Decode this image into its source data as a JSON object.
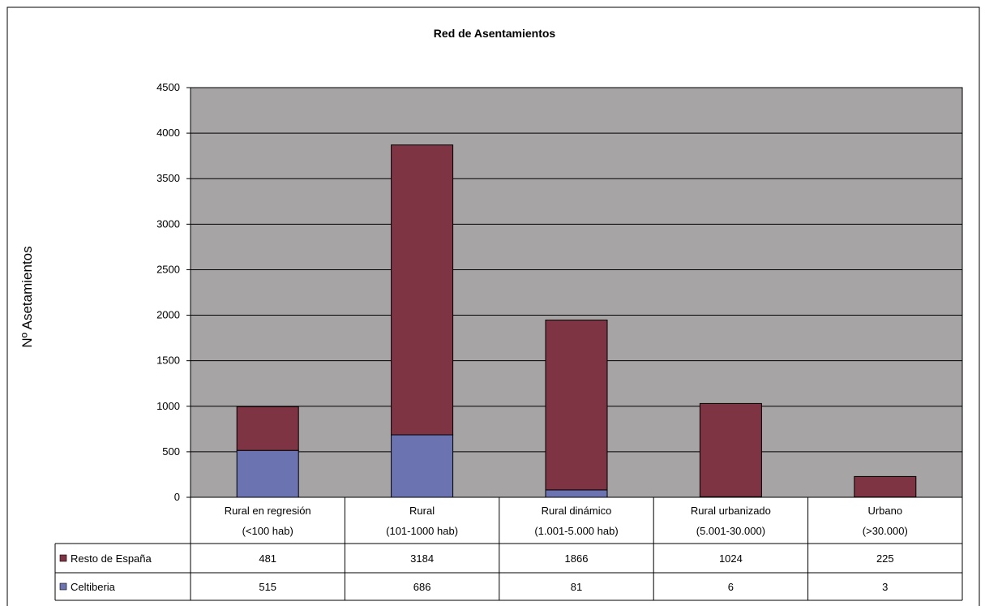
{
  "chart_data": {
    "type": "bar",
    "stacked": true,
    "title": "Red de Asentamientos",
    "ylabel": "Nº Asetamientos",
    "xlabel": "",
    "ylim": [
      0,
      4500
    ],
    "yticks": [
      0,
      500,
      1000,
      1500,
      2000,
      2500,
      3000,
      3500,
      4000,
      4500
    ],
    "grid": true,
    "legend": "data-table",
    "categories": [
      [
        "Rural en regresión",
        "(<100 hab)"
      ],
      [
        "Rural",
        "(101-1000 hab)"
      ],
      [
        "Rural dinámico",
        "(1.001-5.000 hab)"
      ],
      [
        "Rural urbanizado",
        "(5.001-30.000)"
      ],
      [
        "Urbano",
        "(>30.000)"
      ]
    ],
    "series": [
      {
        "name": "Celtiberia",
        "values": [
          515,
          686,
          81,
          6,
          3
        ],
        "color": "#6b74b1"
      },
      {
        "name": "Resto de España",
        "values": [
          481,
          3184,
          1866,
          1024,
          225
        ],
        "color": "#7f3444"
      }
    ],
    "table_row_order": [
      "Resto de España",
      "Celtiberia"
    ],
    "plot_background": "#a6a4a5"
  }
}
